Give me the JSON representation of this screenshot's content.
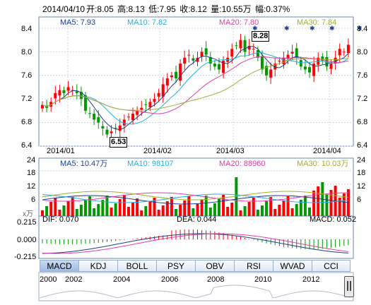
{
  "header": {
    "date": "2014/04/10",
    "open": "开:8.05",
    "high": "高:8.13",
    "low": "低:7.95",
    "close": "收:8.12",
    "volume": "量:10.55万",
    "change": "幅:0.37%"
  },
  "price_panel": {
    "ma5": "MA5: 7.93",
    "ma10": "MA10: 7.82",
    "ma20": "MA20: 7.80",
    "ma30": "MA30: 7.84",
    "y_ticks": [
      "8.4",
      "8.0",
      "7.6",
      "7.2",
      "6.8",
      "6.4"
    ],
    "x_ticks": [
      "2014/01",
      "2014/02",
      "2014/03",
      "2014/04"
    ],
    "high_label": "8.28",
    "low_label": "6.53"
  },
  "volume_panel": {
    "ma5": "MA5: 10.47万",
    "ma10": "MA10: 98107",
    "ma20": "MA20: 88960",
    "ma30": "MA30: 10.03万",
    "y_ticks": [
      "24",
      "18",
      "12",
      "6"
    ],
    "unit": "x万"
  },
  "macd_panel": {
    "dif": "DIF: 0.070",
    "dea": "DEA: 0.044",
    "macd": "MACD: 0.052",
    "y_ticks": [
      "0.215",
      "0.000",
      "-0.215"
    ]
  },
  "indicator_tabs": [
    "MACD",
    "KDJ",
    "BOLL",
    "PSY",
    "OBV",
    "RSI",
    "WVAD",
    "CCI"
  ],
  "timeline_years": [
    "2000",
    "2002",
    "2004",
    "2006",
    "2008",
    "2010",
    "2012"
  ],
  "colors": {
    "up": "#ff0000",
    "down": "#009900",
    "ma5": "#1e3c8c",
    "ma10": "#21b0e0",
    "ma20": "#e040a0",
    "ma30": "#a0b030"
  }
}
